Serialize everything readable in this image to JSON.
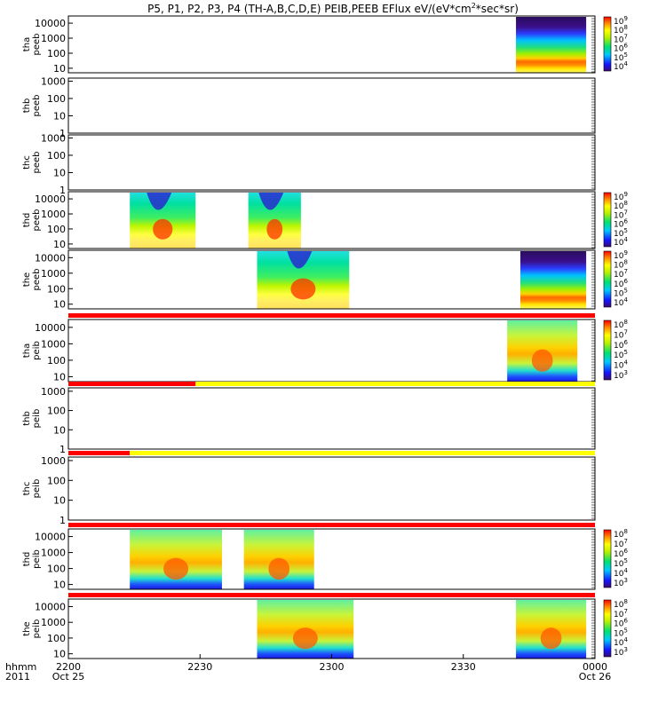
{
  "title_main": "P5, P1, P2, P3, P4 (TH-A,B,C,D,E) PEIB,PEEB EFlux eV/(eV*cm",
  "title_sup": "2",
  "title_end": "*sec*sr)",
  "chart_data": {
    "type": "heatmap",
    "x_axis": {
      "label_lines": [
        "hhmm",
        "2011"
      ],
      "tick_labels": [
        "2200",
        "2230",
        "2300",
        "2330",
        "0000"
      ],
      "tick_sublabels": {
        "2200": "Oct 25",
        "0000": "Oct 26"
      },
      "range": [
        "2011-10-25 22:00",
        "2011-10-26 00:00"
      ]
    },
    "panels": [
      {
        "probe": "tha",
        "product": "peeb",
        "label": [
          "tha",
          "peeb"
        ],
        "yscale": "log",
        "yticks": [
          "10000",
          "1000",
          "100",
          "10"
        ],
        "ylim": [
          5,
          30000
        ],
        "blocks": [
          {
            "start": "23:42",
            "end": "23:58",
            "kind": "electron-full"
          }
        ],
        "colorbar": {
          "ticks": [
            "10^9",
            "10^8",
            "10^7",
            "10^6",
            "10^5",
            "10^4"
          ],
          "range": [
            1000,
            1000000000
          ]
        }
      },
      {
        "probe": "thb",
        "product": "peeb",
        "label": [
          "thb",
          "peeb"
        ],
        "yscale": "log",
        "yticks": [
          "1000",
          "100",
          "10",
          "1"
        ],
        "ylim": [
          1,
          1500
        ],
        "blocks": []
      },
      {
        "probe": "thc",
        "product": "peeb",
        "label": [
          "thc",
          "peeb"
        ],
        "yscale": "log",
        "yticks": [
          "1000",
          "100",
          "10",
          "1"
        ],
        "ylim": [
          1,
          1500
        ],
        "blocks": []
      },
      {
        "probe": "thd",
        "product": "peeb",
        "label": [
          "thd",
          "peeb"
        ],
        "yscale": "log",
        "yticks": [
          "10000",
          "1000",
          "100",
          "10"
        ],
        "ylim": [
          5,
          30000
        ],
        "blocks": [
          {
            "start": "22:14",
            "end": "22:29",
            "kind": "electron-hot"
          },
          {
            "start": "22:41",
            "end": "22:53",
            "kind": "electron-hot"
          }
        ],
        "colorbar": {
          "ticks": [
            "10^9",
            "10^8",
            "10^7",
            "10^6",
            "10^5",
            "10^4"
          ],
          "range": [
            1000,
            1000000000
          ]
        }
      },
      {
        "probe": "the",
        "product": "peeb",
        "label": [
          "the",
          "peeb"
        ],
        "yscale": "log",
        "yticks": [
          "10000",
          "1000",
          "100",
          "10"
        ],
        "ylim": [
          5,
          30000
        ],
        "blocks": [
          {
            "start": "22:43",
            "end": "23:04",
            "kind": "electron-hot"
          },
          {
            "start": "23:43",
            "end": "23:58",
            "kind": "electron-full"
          }
        ],
        "colorbar": {
          "ticks": [
            "10^9",
            "10^8",
            "10^7",
            "10^6",
            "10^5",
            "10^4"
          ],
          "range": [
            1000,
            1000000000
          ]
        }
      },
      {
        "probe": "tha",
        "product": "peib",
        "label": [
          "tha",
          "peib"
        ],
        "yscale": "log",
        "yticks": [
          "10000",
          "1000",
          "100",
          "10"
        ],
        "ylim": [
          5,
          30000
        ],
        "blocks": [
          {
            "start": "23:40",
            "end": "23:56",
            "kind": "ion"
          }
        ],
        "colorbar": {
          "ticks": [
            "10^8",
            "10^7",
            "10^6",
            "10^5",
            "10^4",
            "10^3"
          ],
          "range": [
            100,
            100000000
          ]
        },
        "flag_bar": [
          {
            "start": "22:00",
            "end": "00:00",
            "color": "#ff0000"
          }
        ]
      },
      {
        "probe": "thb",
        "product": "peib",
        "label": [
          "thb",
          "peib"
        ],
        "yscale": "log",
        "yticks": [
          "1000",
          "100",
          "10",
          "1"
        ],
        "ylim": [
          1,
          1500
        ],
        "blocks": [],
        "flag_bar": [
          {
            "start": "22:00",
            "end": "22:29",
            "color": "#ff0000"
          },
          {
            "start": "22:29",
            "end": "00:00",
            "color": "#ffff00"
          }
        ]
      },
      {
        "probe": "thc",
        "product": "peib",
        "label": [
          "thc",
          "peib"
        ],
        "yscale": "log",
        "yticks": [
          "1000",
          "100",
          "10",
          "1"
        ],
        "ylim": [
          1,
          1500
        ],
        "blocks": [],
        "flag_bar": [
          {
            "start": "22:00",
            "end": "22:14",
            "color": "#ff0000"
          },
          {
            "start": "22:14",
            "end": "00:00",
            "color": "#ffff00"
          }
        ]
      },
      {
        "probe": "thd",
        "product": "peib",
        "label": [
          "thd",
          "peib"
        ],
        "yscale": "log",
        "yticks": [
          "10000",
          "1000",
          "100",
          "10"
        ],
        "ylim": [
          5,
          30000
        ],
        "blocks": [
          {
            "start": "22:14",
            "end": "22:35",
            "kind": "ion"
          },
          {
            "start": "22:40",
            "end": "22:56",
            "kind": "ion"
          }
        ],
        "colorbar": {
          "ticks": [
            "10^8",
            "10^7",
            "10^6",
            "10^5",
            "10^4",
            "10^3"
          ],
          "range": [
            100,
            100000000
          ]
        },
        "flag_bar": [
          {
            "start": "22:00",
            "end": "00:00",
            "color": "#ff0000"
          }
        ]
      },
      {
        "probe": "the",
        "product": "peib",
        "label": [
          "the",
          "peib"
        ],
        "yscale": "log",
        "yticks": [
          "10000",
          "1000",
          "100",
          "10"
        ],
        "ylim": [
          5,
          30000
        ],
        "blocks": [
          {
            "start": "22:43",
            "end": "23:05",
            "kind": "ion"
          },
          {
            "start": "23:42",
            "end": "23:58",
            "kind": "ion"
          }
        ],
        "colorbar": {
          "ticks": [
            "10^8",
            "10^7",
            "10^6",
            "10^5",
            "10^4",
            "10^3"
          ],
          "range": [
            100,
            100000000
          ]
        },
        "flag_bar": [
          {
            "start": "22:00",
            "end": "00:00",
            "color": "#ff0000"
          }
        ]
      }
    ]
  }
}
